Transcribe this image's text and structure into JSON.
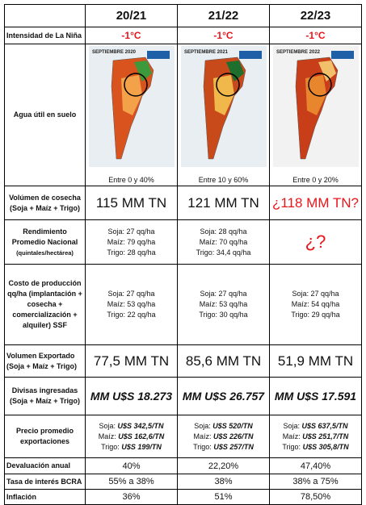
{
  "header": {
    "columns": [
      "20/21",
      "21/22",
      "22/23"
    ]
  },
  "table": {
    "rows": [
      {
        "label": "Intensidad de La Niña",
        "cells": [
          "-1°C",
          "-1°C",
          "-1°C"
        ]
      },
      {
        "label": "Agua útil en suelo",
        "cells": [
          {
            "map_title": "SEPTIEMBRE 2020",
            "caption": "Entre 0 y 40%"
          },
          {
            "map_title": "SEPTIEMBRE 2021",
            "caption": "Entre 10 y 60%"
          },
          {
            "map_title": "SEPTIEMBRE 2022",
            "caption": "Entre 0 y 20%"
          }
        ]
      },
      {
        "label": "Volúmen de cosecha (Soja + Maíz + Trigo)",
        "cells": [
          "115 MM TN",
          "121 MM TN",
          "¿118 MM TN?"
        ]
      },
      {
        "label": "Rendimiento Promedio Nacional",
        "sublabel": "(quintales/hectárea)",
        "cells": [
          [
            "Soja: 27 qq/ha",
            "Maíz: 79 qq/ha",
            "Trigo: 28 qq/ha"
          ],
          [
            "Soja: 28 qq/ha",
            "Maíz: 70 qq/ha",
            "Trigo: 34,4 qq/ha"
          ],
          "¿?"
        ]
      },
      {
        "label": "Costo de producción qq/ha (implantación + cosecha + comercialización + alquiler) SSF",
        "cells": [
          [
            "Soja: 27 qq/ha",
            "Maíz: 53 qq/ha",
            "Trigo: 22 qq/ha"
          ],
          [
            "Soja: 27 qq/ha",
            "Maíz: 53 qq/ha",
            "Trigo: 30 qq/ha"
          ],
          [
            "Soja: 27 qq/ha",
            "Maíz: 54 qq/ha",
            "Trigo: 29 qq/ha"
          ]
        ]
      },
      {
        "label": "Volumen Exportado (Soja + Maíz + Trigo)",
        "cells": [
          "77,5 MM TN",
          "85,6 MM TN",
          "51,9 MM TN"
        ]
      },
      {
        "label": "Divisas ingresadas (Soja + Maíz + Trigo)",
        "cells": [
          "MM U$S 18.273",
          "MM U$S 26.757",
          "MM U$S 17.591"
        ]
      },
      {
        "label": "Precio promedio exportaciones",
        "cells": [
          [
            {
              "name": "Soja:",
              "value": "U$S 342,5/TN"
            },
            {
              "name": "Maíz:",
              "value": "U$S 162,6/TN"
            },
            {
              "name": "Trigo:",
              "value": "U$S 199/TN"
            }
          ],
          [
            {
              "name": "Soja:",
              "value": "U$S 520/TN"
            },
            {
              "name": "Maíz:",
              "value": "U$S 226/TN"
            },
            {
              "name": "Trigo:",
              "value": "U$S 257/TN"
            }
          ],
          [
            {
              "name": "Soja:",
              "value": "U$S 637,5/TN"
            },
            {
              "name": "Maíz:",
              "value": "U$S 251,7/TN"
            },
            {
              "name": "Trigo:",
              "value": "U$S 305,8/TN"
            }
          ]
        ]
      },
      {
        "label": "Devaluación anual",
        "cells": [
          "40%",
          "22,20%",
          "47,40%"
        ]
      },
      {
        "label": "Tasa de interés BCRA",
        "cells": [
          "55% a 38%",
          "38%",
          "38% a 75%"
        ]
      },
      {
        "label": "Inflación",
        "cells": [
          "36%",
          "51%",
          "78,50%"
        ]
      }
    ]
  }
}
